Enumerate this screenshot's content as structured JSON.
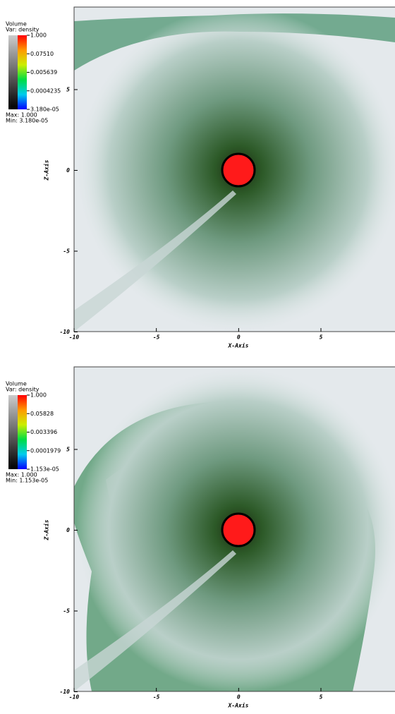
{
  "panels": [
    {
      "legend": {
        "title": "Volume",
        "variable": "Var: density",
        "labels": [
          "1.000",
          "0.07510",
          "0.005639",
          "0.0004235",
          "3.180e-05"
        ],
        "max": "Max: 1.000",
        "min": "Min: 3.180e-05"
      },
      "x_axis": {
        "title": "X-Axis",
        "ticks": [
          "-10",
          "-5",
          "0",
          "5"
        ]
      },
      "z_axis": {
        "title": "Z-Axis",
        "ticks": [
          "5",
          "0",
          "-5",
          "-10"
        ]
      }
    },
    {
      "legend": {
        "title": "Volume",
        "variable": "Var: density",
        "labels": [
          "1.000",
          "0.05828",
          "0.003396",
          "0.0001979",
          "1.153e-05"
        ],
        "max": "Max: 1.000",
        "min": "Min: 1.153e-05"
      },
      "x_axis": {
        "title": "X-Axis",
        "ticks": [
          "-10",
          "-5",
          "0",
          "5"
        ]
      },
      "z_axis": {
        "title": "Z-Axis",
        "ticks": [
          "5",
          "0",
          "-5",
          "-10"
        ]
      }
    }
  ]
}
